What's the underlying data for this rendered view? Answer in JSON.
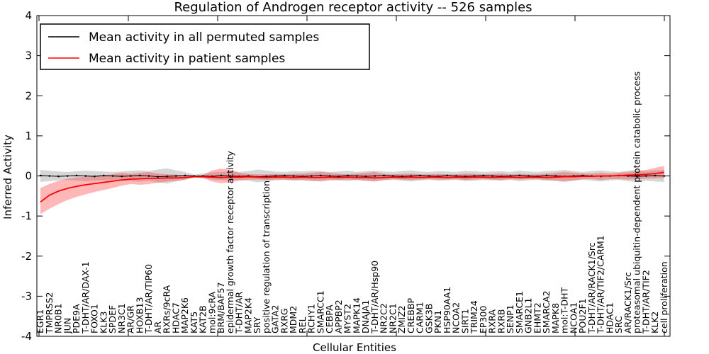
{
  "title": "Regulation of Androgen receptor activity -- 526 samples",
  "xlabel": "Cellular Entities",
  "ylabel": "Inferred Activity",
  "legend": {
    "permuted_label": "Mean activity in all permuted samples",
    "patient_label": "Mean activity in patient samples"
  },
  "colors": {
    "permuted_line": "#000000",
    "patient_line": "#ff0000",
    "permuted_band": "rgba(0,0,0,0.16)",
    "patient_band": "rgba(255,30,30,0.32)",
    "frame": "#000000",
    "background": "#ffffff"
  },
  "chart_data": {
    "type": "line",
    "title": "Regulation of Androgen receptor activity -- 526 samples",
    "xlabel": "Cellular Entities",
    "ylabel": "Inferred Activity",
    "ylim": [
      -4,
      4
    ],
    "yticks": [
      -4,
      -3,
      -2,
      -1,
      0,
      1,
      2,
      3,
      4
    ],
    "grid": false,
    "legend_position": "upper left",
    "categories": [
      "EGR1",
      "TMPRSS2",
      "NR0B1",
      "JUN",
      "PDE9A",
      "T-DHT/AR/DAX-1",
      "FOXO1",
      "KLK3",
      "SPDEF",
      "NR3C1",
      "AR/GR",
      "HOXB13",
      "T-DHT/AR/TIP60",
      "AR",
      "RXRs/9cRA",
      "HDAC7",
      "MAP2K6",
      "KAT5",
      "KAT2B",
      "mol:9cRA",
      "BRM/BAF57",
      "epidermal growth factor receptor activity",
      "T-DHT/AR",
      "MAP2K4",
      "SRY",
      "positive regulation of transcription",
      "GATA2",
      "RXRG",
      "MDM2",
      "REL",
      "RCHY1",
      "SMARCC1",
      "CEBPA",
      "APPBP2",
      "MYST2",
      "MAPK14",
      "DNAJA1",
      "T-DHT/AR/Hsp90",
      "NR2C2",
      "NR2C1",
      "ZMIZ2",
      "CREBBP",
      "CARM1",
      "GSK3B",
      "PKN1",
      "HSP90AA1",
      "NCOA2",
      "SIRT1",
      "TRIM24",
      "EP300",
      "RXRA",
      "RXRB",
      "SENP1",
      "SMARCE1",
      "GNB2L1",
      "EHMT2",
      "SMARCA2",
      "MAPK8",
      "mol:T-DHT",
      "NCOA1",
      "POU2F1",
      "T-DHT/AR/RACK1/Src",
      "T-DHT/AR/TIF2/CARM1",
      "HDAC1",
      "SRC",
      "AR/RACK1/Src",
      "proteasomal ubiquitin-dependent protein catabolic process",
      "T-DHT/AR/TIF2",
      "KLK2",
      "cell proliferation"
    ],
    "series": [
      {
        "name": "Mean activity in all permuted samples",
        "line_color": "#000000",
        "band_color": "rgba(0,0,0,0.16)",
        "mean": [
          0.01,
          0,
          -0.01,
          0,
          0.01,
          0,
          -0.01,
          0.01,
          0,
          -0.01,
          0,
          0.01,
          0,
          -0.02,
          -0.01,
          0,
          0.01,
          0,
          0,
          -0.01,
          0.01,
          0,
          -0.01,
          0,
          -0.02,
          -0.01,
          0,
          0.01,
          0,
          -0.01,
          0,
          0.01,
          0,
          -0.01,
          0.01,
          0,
          -0.01,
          0,
          0.01,
          0,
          -0.01,
          0,
          0.01,
          0,
          -0.01,
          0.01,
          0,
          -0.01,
          0,
          0.01,
          0,
          -0.01,
          0,
          0.01,
          0,
          -0.01,
          0.01,
          0,
          -0.01,
          0,
          0.01,
          0,
          -0.01,
          0,
          0.01,
          0,
          -0.01,
          0,
          0.01,
          0
        ],
        "upper": [
          0.15,
          0.13,
          0.11,
          0.1,
          0.12,
          0.13,
          0.12,
          0.11,
          0.1,
          0.11,
          0.13,
          0.14,
          0.12,
          0.16,
          0.19,
          0.14,
          0.1,
          0.03,
          0.06,
          0.09,
          0.1,
          0.11,
          0.1,
          0.12,
          0.16,
          0.14,
          0.11,
          0.1,
          0.12,
          0.11,
          0.13,
          0.12,
          0.1,
          0.11,
          0.13,
          0.1,
          0.12,
          0.13,
          0.11,
          0.1,
          0.12,
          0.14,
          0.11,
          0.1,
          0.12,
          0.11,
          0.1,
          0.13,
          0.12,
          0.1,
          0.11,
          0.12,
          0.1,
          0.13,
          0.11,
          0.1,
          0.12,
          0.13,
          0.15,
          0.12,
          0.1,
          0.12,
          0.14,
          0.11,
          0.1,
          0.13,
          0.16,
          0.12,
          0.14,
          0.15
        ],
        "lower": [
          -0.15,
          -0.13,
          -0.11,
          -0.1,
          -0.12,
          -0.13,
          -0.12,
          -0.11,
          -0.1,
          -0.11,
          -0.13,
          -0.14,
          -0.12,
          -0.16,
          -0.19,
          -0.14,
          -0.1,
          -0.03,
          -0.06,
          -0.09,
          -0.1,
          -0.11,
          -0.1,
          -0.12,
          -0.16,
          -0.14,
          -0.11,
          -0.1,
          -0.12,
          -0.11,
          -0.13,
          -0.12,
          -0.1,
          -0.11,
          -0.13,
          -0.1,
          -0.12,
          -0.13,
          -0.11,
          -0.1,
          -0.12,
          -0.14,
          -0.11,
          -0.1,
          -0.12,
          -0.11,
          -0.1,
          -0.13,
          -0.12,
          -0.1,
          -0.11,
          -0.12,
          -0.1,
          -0.13,
          -0.11,
          -0.1,
          -0.12,
          -0.13,
          -0.15,
          -0.12,
          -0.1,
          -0.12,
          -0.14,
          -0.11,
          -0.1,
          -0.13,
          -0.16,
          -0.12,
          -0.14,
          -0.15
        ]
      },
      {
        "name": "Mean activity in patient samples",
        "line_color": "#ff0000",
        "band_color": "rgba(255,30,30,0.32)",
        "mean": [
          -0.65,
          -0.48,
          -0.38,
          -0.31,
          -0.26,
          -0.22,
          -0.19,
          -0.16,
          -0.13,
          -0.1,
          -0.08,
          -0.07,
          -0.06,
          -0.06,
          -0.05,
          -0.05,
          -0.04,
          -0.02,
          -0.02,
          -0.03,
          -0.04,
          -0.03,
          -0.03,
          -0.02,
          -0.03,
          -0.04,
          -0.03,
          -0.03,
          -0.04,
          -0.03,
          -0.04,
          -0.04,
          -0.03,
          -0.04,
          -0.03,
          -0.04,
          -0.04,
          -0.05,
          -0.04,
          -0.03,
          -0.04,
          -0.03,
          -0.04,
          -0.03,
          -0.03,
          -0.04,
          -0.03,
          -0.04,
          -0.03,
          -0.03,
          -0.04,
          -0.03,
          -0.03,
          -0.04,
          -0.03,
          -0.03,
          -0.04,
          -0.03,
          -0.02,
          -0.02,
          -0.01,
          -0.01,
          0.0,
          0.0,
          0.01,
          0.02,
          0.03,
          0.04,
          0.06,
          0.09
        ],
        "upper": [
          -0.3,
          -0.2,
          -0.12,
          -0.07,
          -0.04,
          -0.02,
          0.0,
          0.02,
          0.04,
          0.08,
          0.05,
          0.08,
          0.1,
          0.06,
          0.04,
          0.03,
          0.02,
          0.0,
          0.02,
          0.14,
          0.18,
          0.15,
          0.08,
          0.05,
          0.04,
          0.04,
          0.05,
          0.04,
          0.05,
          0.06,
          0.08,
          0.1,
          0.08,
          0.05,
          0.04,
          0.06,
          0.08,
          0.1,
          0.05,
          0.04,
          0.05,
          0.06,
          0.04,
          0.04,
          0.05,
          0.04,
          0.04,
          0.06,
          0.05,
          0.04,
          0.05,
          0.06,
          0.04,
          0.05,
          0.04,
          0.04,
          0.06,
          0.08,
          0.1,
          0.08,
          0.06,
          0.06,
          0.08,
          0.06,
          0.08,
          0.1,
          0.12,
          0.15,
          0.2,
          0.25
        ],
        "lower": [
          -0.95,
          -0.82,
          -0.7,
          -0.6,
          -0.52,
          -0.46,
          -0.4,
          -0.35,
          -0.3,
          -0.24,
          -0.2,
          -0.22,
          -0.2,
          -0.17,
          -0.14,
          -0.12,
          -0.09,
          -0.04,
          -0.05,
          -0.14,
          -0.18,
          -0.16,
          -0.12,
          -0.09,
          -0.09,
          -0.1,
          -0.09,
          -0.09,
          -0.1,
          -0.1,
          -0.12,
          -0.14,
          -0.11,
          -0.1,
          -0.09,
          -0.1,
          -0.12,
          -0.14,
          -0.1,
          -0.08,
          -0.09,
          -0.1,
          -0.09,
          -0.08,
          -0.09,
          -0.09,
          -0.08,
          -0.1,
          -0.09,
          -0.08,
          -0.09,
          -0.1,
          -0.08,
          -0.09,
          -0.08,
          -0.08,
          -0.1,
          -0.11,
          -0.13,
          -0.11,
          -0.08,
          -0.08,
          -0.1,
          -0.08,
          -0.08,
          -0.09,
          -0.08,
          -0.07,
          -0.06,
          -0.05
        ]
      }
    ]
  }
}
